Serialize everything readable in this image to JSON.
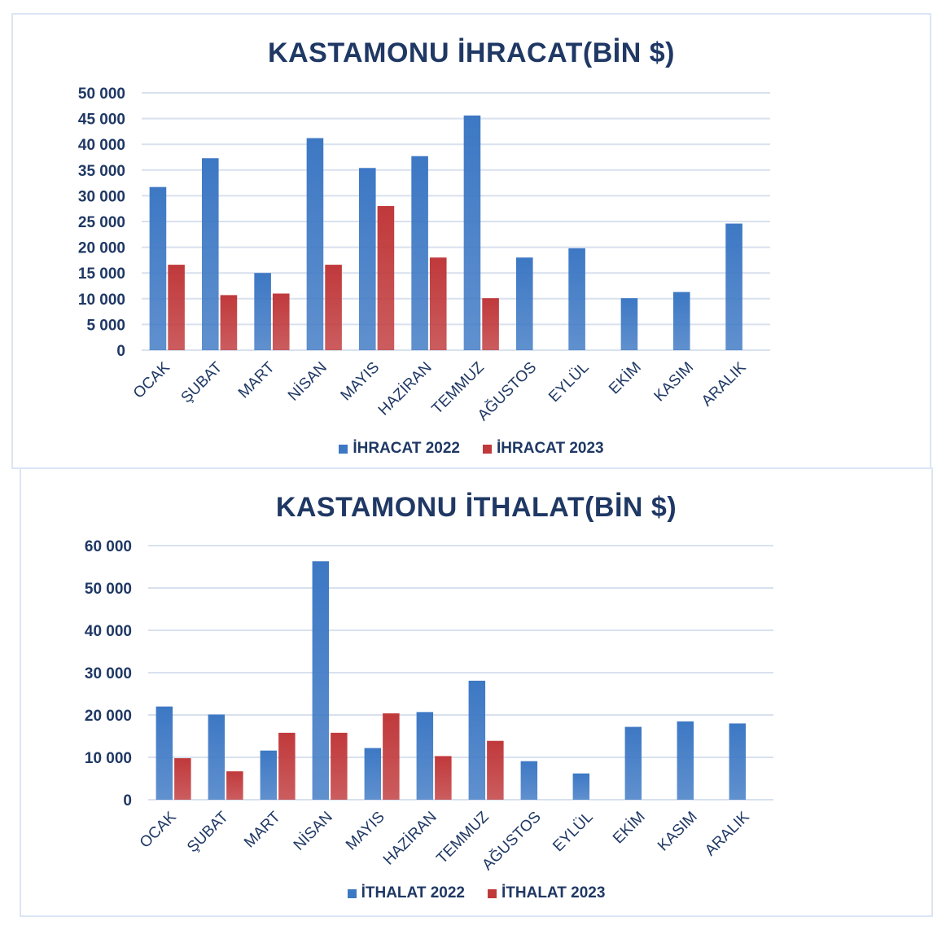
{
  "colors": {
    "series_2022": "#3d78c4",
    "series_2023": "#c0393b",
    "title": "#1f3864",
    "grid": "#d9e1ee"
  },
  "chart_data": [
    {
      "type": "bar",
      "title": "KASTAMONU İHRACAT(BİN $)",
      "categories": [
        "OCAK",
        "ŞUBAT",
        "MART",
        "NİSAN",
        "MAYIS",
        "HAZİRAN",
        "TEMMUZ",
        "AĞUSTOS",
        "EYLÜL",
        "EKİM",
        "KASIM",
        "ARALIK"
      ],
      "series": [
        {
          "name": "İHRACAT 2022",
          "values": [
            31700,
            37300,
            15000,
            41200,
            35400,
            37700,
            45600,
            18000,
            19800,
            10100,
            11300,
            24600
          ]
        },
        {
          "name": "İHRACAT 2023",
          "values": [
            16600,
            10700,
            11000,
            16600,
            28000,
            18000,
            10100,
            null,
            null,
            null,
            null,
            null
          ]
        }
      ],
      "ylim": [
        0,
        50000
      ],
      "yticks": [
        0,
        5000,
        10000,
        15000,
        20000,
        25000,
        30000,
        35000,
        40000,
        45000,
        50000
      ],
      "ytick_labels": [
        "0",
        "5 000",
        "10 000",
        "15 000",
        "20 000",
        "25 000",
        "30 000",
        "35 000",
        "40 000",
        "45 000",
        "50 000"
      ],
      "grid": true,
      "legend_position": "bottom"
    },
    {
      "type": "bar",
      "title": "KASTAMONU İTHALAT(BİN $)",
      "categories": [
        "OCAK",
        "ŞUBAT",
        "MART",
        "NİSAN",
        "MAYIS",
        "HAZİRAN",
        "TEMMUZ",
        "AĞUSTOS",
        "EYLÜL",
        "EKİM",
        "KASIM",
        "ARALIK"
      ],
      "series": [
        {
          "name": "İTHALAT 2022",
          "values": [
            22000,
            20100,
            11600,
            56300,
            12200,
            20700,
            28100,
            9100,
            6200,
            17200,
            18500,
            18000
          ]
        },
        {
          "name": "İTHALAT 2023",
          "values": [
            9800,
            6700,
            15800,
            15800,
            20400,
            10300,
            13900,
            null,
            null,
            null,
            null,
            null
          ]
        }
      ],
      "ylim": [
        0,
        60000
      ],
      "yticks": [
        0,
        10000,
        20000,
        30000,
        40000,
        50000,
        60000
      ],
      "ytick_labels": [
        "0",
        "10 000",
        "20 000",
        "30 000",
        "40 000",
        "50 000",
        "60 000"
      ],
      "grid": true,
      "legend_position": "bottom"
    }
  ]
}
